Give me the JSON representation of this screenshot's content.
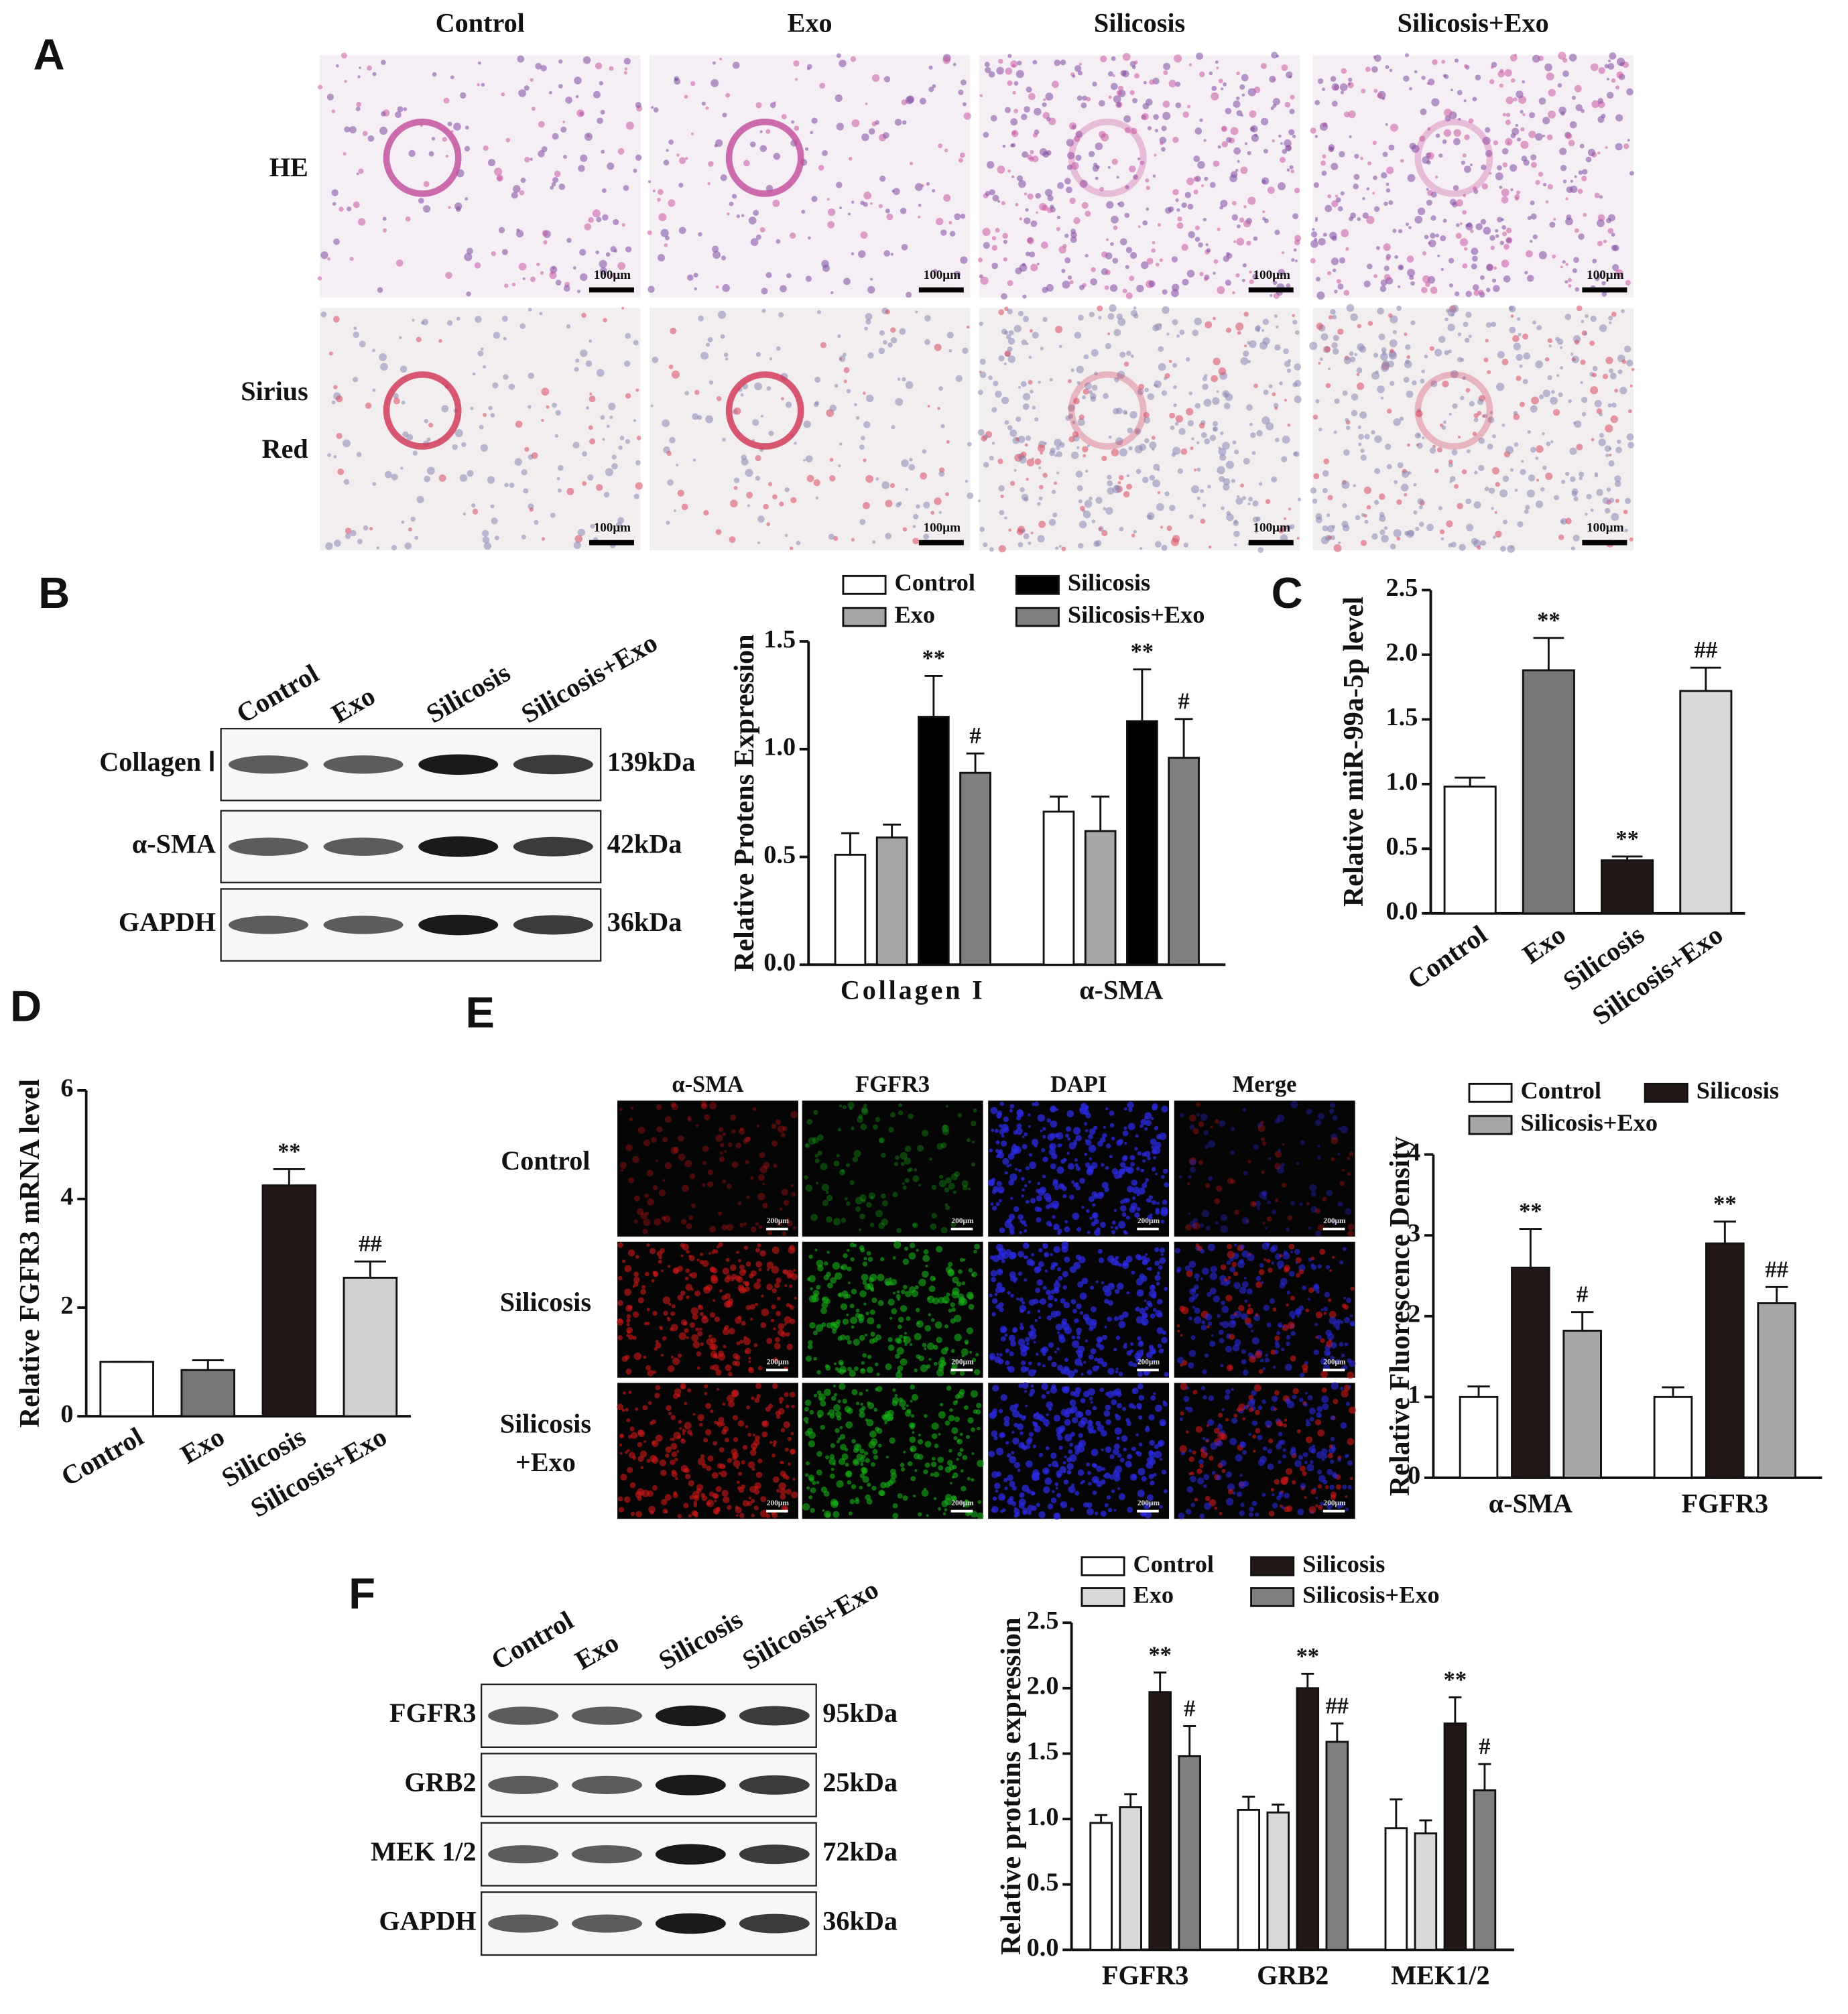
{
  "panel_labels": [
    "A",
    "B",
    "C",
    "D",
    "E",
    "F"
  ],
  "histology": {
    "columns": [
      "Control",
      "Exo",
      "Silicosis",
      "Silicosis+Exo"
    ],
    "rows": [
      [
        "HE"
      ],
      [
        "Sirius",
        "Red"
      ]
    ],
    "scale_bar": "100μm"
  },
  "blot_b": {
    "lanes": [
      "Control",
      "Exo",
      "Silicosis",
      "Silicosis+Exo"
    ],
    "bands": [
      {
        "name": "Collagen Ⅰ",
        "size": "139kDa"
      },
      {
        "name": "α-SMA",
        "size": "42kDa"
      },
      {
        "name": "GAPDH",
        "size": "36kDa"
      }
    ]
  },
  "immunofluorescence": {
    "channels": [
      "α-SMA",
      "FGFR3",
      "DAPI",
      "Merge"
    ],
    "rows": [
      [
        "Control"
      ],
      [
        "Silicosis"
      ],
      [
        "Silicosis",
        "+Exo"
      ]
    ],
    "scale_bar": "200μm"
  },
  "blot_f": {
    "lanes": [
      "Control",
      "Exo",
      "Silicosis",
      "Silicosis+Exo"
    ],
    "bands": [
      {
        "name": "FGFR3",
        "size": "95kDa"
      },
      {
        "name": "GRB2",
        "size": "25kDa"
      },
      {
        "name": "MEK 1/2",
        "size": "72kDa"
      },
      {
        "name": "GAPDH",
        "size": "36kDa"
      }
    ]
  },
  "chart_data": [
    {
      "type": "bar",
      "y_label": "Relative Protens Expression",
      "categories": [
        "Collagen I",
        "α-SMA"
      ],
      "ylim": [
        0,
        1.5
      ],
      "yticks": [
        {
          "value": 0,
          "label": "0.0"
        },
        0.5,
        {
          "value": 1,
          "label": "1.0"
        },
        1.5
      ],
      "series": [
        {
          "name": "Control",
          "color": "#ffffff",
          "values": [
            0.51,
            0.71
          ],
          "errors": [
            0.1,
            0.07
          ]
        },
        {
          "name": "Exo",
          "color": "#a6a6a6",
          "values": [
            0.59,
            0.62
          ],
          "errors": [
            0.06,
            0.16
          ]
        },
        {
          "name": "Silicosis",
          "color": "#000000",
          "values": [
            1.15,
            1.13
          ],
          "errors": [
            0.19,
            0.24
          ],
          "significance": [
            "**",
            "**"
          ]
        },
        {
          "name": "Silicosis+Exo",
          "color": "#7f7f7f",
          "values": [
            0.89,
            0.96
          ],
          "errors": [
            0.09,
            0.18
          ],
          "significance": [
            "#",
            "#"
          ]
        }
      ]
    },
    {
      "type": "bar",
      "y_label": "Relative miR-99a-5p level",
      "categories": [
        "Control",
        "Exo",
        "Silicosis",
        "Silicosis+Exo"
      ],
      "values": [
        0.98,
        1.88,
        0.41,
        1.72
      ],
      "errors": [
        0.07,
        0.25,
        0.03,
        0.18
      ],
      "colors": [
        "#ffffff",
        "#777777",
        "#231815",
        "#d9d9d9"
      ],
      "significance": [
        null,
        "**",
        "**",
        "##"
      ],
      "ylim": [
        0,
        2.5
      ],
      "yticks": [
        {
          "value": 0,
          "label": "0.0"
        },
        0.5,
        {
          "value": 1,
          "label": "1.0"
        },
        1.5,
        {
          "value": 2,
          "label": "2.0"
        },
        2.5
      ]
    },
    {
      "type": "bar",
      "y_label": "Relative FGFR3 mRNA level",
      "categories": [
        "Control",
        "Exo",
        "Silicosis",
        "Silicosis+Exo"
      ],
      "values": [
        1,
        0.85,
        4.25,
        2.55
      ],
      "errors": [
        0,
        0.18,
        0.3,
        0.3
      ],
      "colors": [
        "#ffffff",
        "#777777",
        "#231815",
        "#d0d0d0"
      ],
      "significance": [
        null,
        null,
        "**",
        "##"
      ],
      "ylim": [
        0,
        6
      ],
      "yticks": [
        0,
        2,
        4,
        6
      ]
    },
    {
      "type": "bar",
      "y_label": "Relative Fluorescence Density",
      "categories": [
        "α-SMA",
        "FGFR3"
      ],
      "ylim": [
        0,
        4
      ],
      "yticks": [
        0,
        1,
        2,
        3,
        4
      ],
      "series": [
        {
          "name": "Control",
          "color": "#ffffff",
          "values": [
            1.0,
            1.0
          ],
          "errors": [
            0.13,
            0.12
          ]
        },
        {
          "name": "Silicosis",
          "color": "#231815",
          "values": [
            2.6,
            2.9
          ],
          "errors": [
            0.48,
            0.27
          ],
          "significance": [
            "**",
            "**"
          ]
        },
        {
          "name": "Silicosis+Exo",
          "color": "#a6a6a6",
          "values": [
            1.82,
            2.16
          ],
          "errors": [
            0.23,
            0.2
          ],
          "significance": [
            "#",
            "##"
          ]
        }
      ]
    },
    {
      "type": "bar",
      "y_label": "Relative proteins expression",
      "categories": [
        "FGFR3",
        "GRB2",
        "MEK1/2"
      ],
      "ylim": [
        0,
        2.5
      ],
      "yticks": [
        {
          "value": 0,
          "label": "0.0"
        },
        0.5,
        {
          "value": 1,
          "label": "1.0"
        },
        1.5,
        {
          "value": 2,
          "label": "2.0"
        },
        2.5
      ],
      "series": [
        {
          "name": "Control",
          "color": "#ffffff",
          "values": [
            0.97,
            1.07,
            0.93
          ],
          "errors": [
            0.06,
            0.1,
            0.22
          ]
        },
        {
          "name": "Exo",
          "color": "#d9d9d9",
          "values": [
            1.09,
            1.05,
            0.89
          ],
          "errors": [
            0.1,
            0.06,
            0.1
          ]
        },
        {
          "name": "Silicosis",
          "color": "#231815",
          "values": [
            1.97,
            2.0,
            1.73
          ],
          "errors": [
            0.15,
            0.11,
            0.2
          ],
          "significance": [
            "**",
            "**",
            "**"
          ]
        },
        {
          "name": "Silicosis+Exo",
          "color": "#7f7f7f",
          "values": [
            1.48,
            1.59,
            1.22
          ],
          "errors": [
            0.23,
            0.14,
            0.2
          ],
          "significance": [
            "#",
            "##",
            "#"
          ]
        }
      ]
    }
  ]
}
